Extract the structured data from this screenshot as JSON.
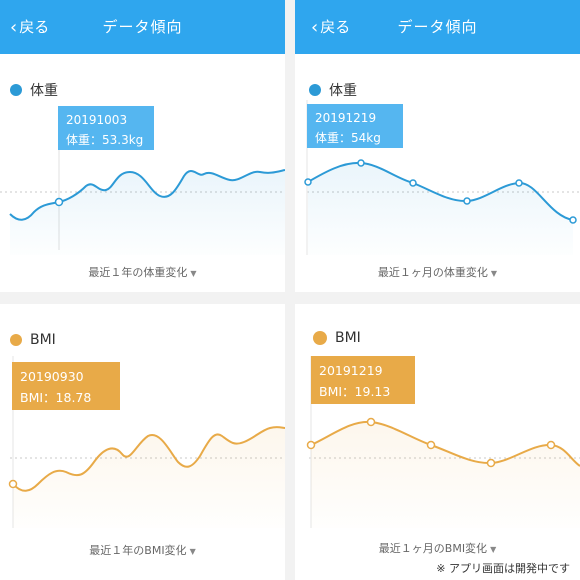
{
  "colors": {
    "header": "#2fa6ee",
    "weight": "#2c9ad6",
    "bmi": "#e8aa48",
    "tooltip_weight": "#55b6f0",
    "tooltip_bmi": "#e8aa48"
  },
  "panels": {
    "weight_year": {
      "header": {
        "back_label": "戻る",
        "title": "データ傾向",
        "back_icon": "chevron-left-icon"
      },
      "legend": "体重",
      "tooltip": {
        "date": "20191003",
        "value": "体重：53.3kg"
      },
      "period": "最近１年の体重変化",
      "chart_data": {
        "type": "area",
        "series": [
          {
            "values": [
              51.6,
              51.4,
              52.4,
              53.3,
              53.6,
              55.0,
              54.2,
              55.6,
              55.8,
              54.4,
              53.8,
              56.1,
              54.8,
              55.2,
              55.8,
              55.1,
              55.3
            ]
          }
        ]
      }
    },
    "weight_month": {
      "header": {
        "back_label": "戻る",
        "title": "データ傾向",
        "back_icon": "chevron-left-icon"
      },
      "legend": "体重",
      "tooltip": {
        "date": "20191219",
        "value": "体重：54kg"
      },
      "period": "最近１ヶ月の体重変化",
      "chart_data": {
        "type": "line",
        "series": [
          {
            "values": [
              53.8,
              54.6,
              53.8,
              53.1,
              53.7,
              51.9
            ]
          }
        ]
      }
    },
    "bmi_year": {
      "legend": "BMI",
      "tooltip": {
        "date": "20190930",
        "value": "BMI：18.78"
      },
      "period": "最近１年のBMI変化",
      "chart_data": {
        "type": "area",
        "series": [
          {
            "values": [
              18.78,
              18.6,
              18.9,
              19.1,
              19.4,
              19.2,
              19.5,
              19.7,
              19.4,
              19.9,
              19.6,
              19.3,
              19.9,
              19.6,
              19.8,
              20.0,
              19.9
            ]
          }
        ]
      }
    },
    "bmi_month": {
      "legend": "BMI",
      "tooltip": {
        "date": "20191219",
        "value": "BMI：19.13"
      },
      "period": "最近１ヶ月のBMI変化",
      "chart_data": {
        "type": "line",
        "series": [
          {
            "values": [
              19.0,
              19.13,
              18.9,
              18.75,
              18.9,
              18.55
            ]
          }
        ]
      }
    }
  },
  "footer_note": "※ アプリ画面は開発中です"
}
